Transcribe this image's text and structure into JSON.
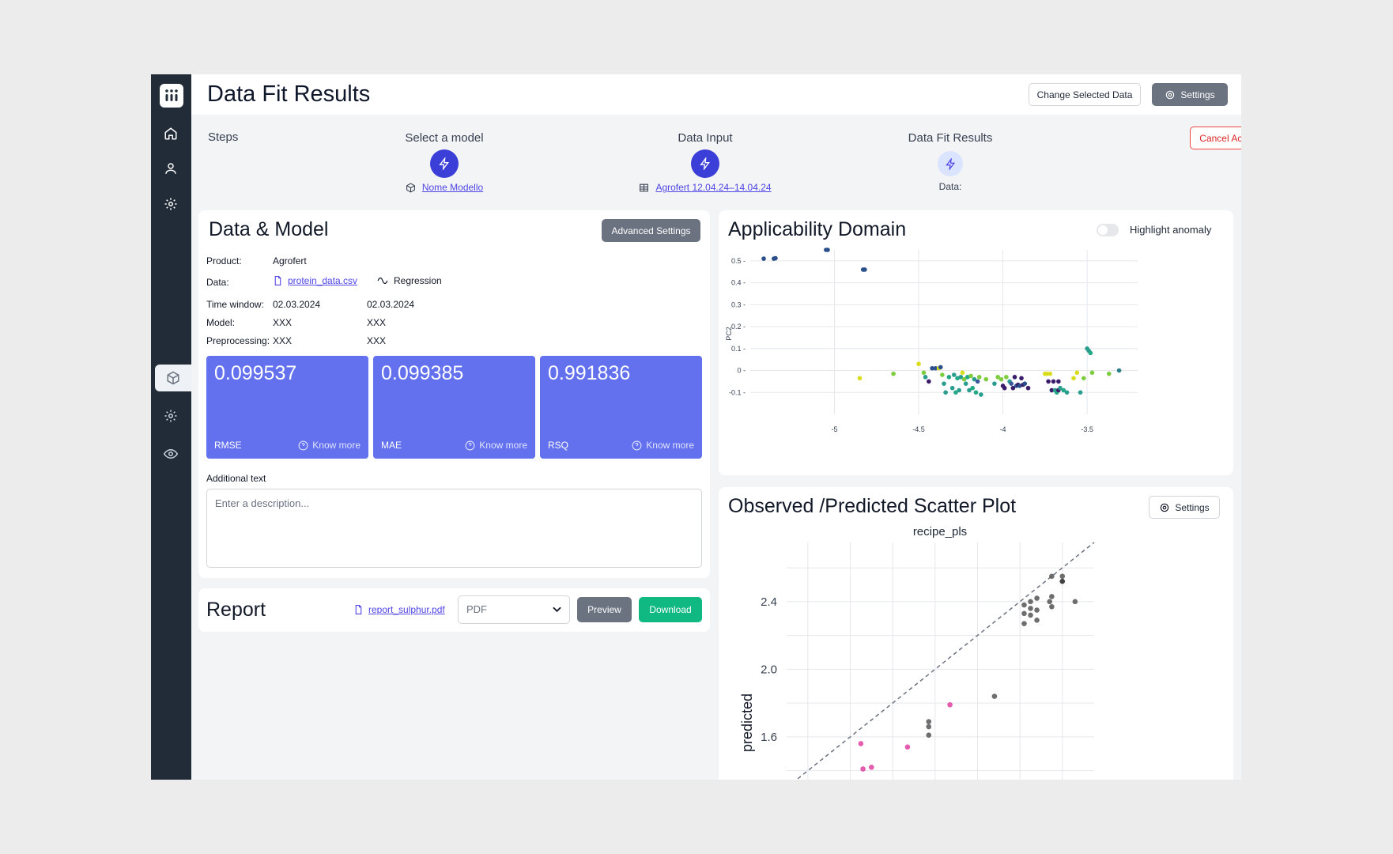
{
  "header": {
    "title": "Data Fit Results",
    "change_data_label": "Change Selected Data",
    "settings_label": "Settings"
  },
  "steps": {
    "label": "Steps",
    "cancel_label": "Cancel Action",
    "items": [
      {
        "title": "Select a model",
        "link": "Nome Modello",
        "icon": "cube-icon"
      },
      {
        "title": "Data Input",
        "link": "Agrofert 12.04.24–14.04.24",
        "icon": "table-icon"
      },
      {
        "title": "Data Fit Results",
        "link": "Data:",
        "icon": ""
      }
    ]
  },
  "data_model": {
    "title": "Data & Model",
    "advanced_settings_label": "Advanced Settings",
    "product_label": "Product:",
    "product_value": "Agrofert",
    "data_label": "Data:",
    "data_file": "protein_data.csv",
    "data_type": "Regression",
    "time_window_label": "Time window:",
    "time_window_from": "02.03.2024",
    "time_window_to": "02.03.2024",
    "model_label": "Model:",
    "model_value_1": "XXX",
    "model_value_2": "XXX",
    "preprocessing_label": "Preprocessing:",
    "preprocessing_value_1": "XXX",
    "preprocessing_value_2": "XXX",
    "metrics": [
      {
        "value": "0.099537",
        "label": "RMSE",
        "more": "Know more"
      },
      {
        "value": "0.099385",
        "label": "MAE",
        "more": "Know more"
      },
      {
        "value": "0.991836",
        "label": "RSQ",
        "more": "Know more"
      }
    ],
    "additional_text_label": "Additional text",
    "description_placeholder": "Enter a description..."
  },
  "report": {
    "title": "Report",
    "file": "report_sulphur.pdf",
    "format": "PDF",
    "preview_label": "Preview",
    "download_label": "Download"
  },
  "applicability": {
    "title": "Applicability Domain",
    "toggle_label": "Highlight anomaly"
  },
  "scatter": {
    "title": "Observed /Predicted Scatter Plot",
    "settings_label": "Settings"
  },
  "chart_data": [
    {
      "type": "scatter",
      "title": "",
      "xlabel": "",
      "ylabel": "PC2",
      "xlim": [
        -5.5,
        -3.2
      ],
      "ylim": [
        -0.2,
        0.55
      ],
      "x_ticks": [
        "-5",
        "-4.5",
        "-4",
        "-3.5"
      ],
      "y_ticks": [
        "0.5",
        "0.4",
        "0.3",
        "0.2",
        "0.1",
        "0",
        "-0.1"
      ],
      "grid": true,
      "points": [
        {
          "x": -5.42,
          "y": 0.51,
          "c": "#2b4f8a"
        },
        {
          "x": -5.36,
          "y": 0.51,
          "c": "#2b4f8a"
        },
        {
          "x": -5.35,
          "y": 0.512,
          "c": "#2b4f8a"
        },
        {
          "x": -5.05,
          "y": 0.55,
          "c": "#2b4f8a"
        },
        {
          "x": -5.04,
          "y": 0.55,
          "c": "#2b4f8a"
        },
        {
          "x": -4.83,
          "y": 0.46,
          "c": "#2b4f8a"
        },
        {
          "x": -4.82,
          "y": 0.46,
          "c": "#2b4f8a"
        },
        {
          "x": -4.85,
          "y": -0.035,
          "c": "#dadd1c"
        },
        {
          "x": -4.65,
          "y": -0.015,
          "c": "#7dcd3e"
        },
        {
          "x": -4.5,
          "y": 0.03,
          "c": "#dadd1c"
        },
        {
          "x": -4.47,
          "y": -0.01,
          "c": "#7dcd3e"
        },
        {
          "x": -4.46,
          "y": -0.03,
          "c": "#2a9d8f"
        },
        {
          "x": -4.44,
          "y": -0.05,
          "c": "#3b1c6b"
        },
        {
          "x": -4.42,
          "y": 0.01,
          "c": "#2b4f8a"
        },
        {
          "x": -4.4,
          "y": 0.01,
          "c": "#2b4f8a"
        },
        {
          "x": -4.38,
          "y": 0.01,
          "c": "#dadd1c"
        },
        {
          "x": -4.37,
          "y": 0.015,
          "c": "#2b4f8a"
        },
        {
          "x": -4.36,
          "y": -0.02,
          "c": "#7dcd3e"
        },
        {
          "x": -4.35,
          "y": -0.06,
          "c": "#2a9d8f"
        },
        {
          "x": -4.34,
          "y": -0.1,
          "c": "#2a9d8f"
        },
        {
          "x": -4.32,
          "y": -0.03,
          "c": "#22a884"
        },
        {
          "x": -4.3,
          "y": -0.08,
          "c": "#2a9d8f"
        },
        {
          "x": -4.29,
          "y": -0.02,
          "c": "#2a9d8f"
        },
        {
          "x": -4.28,
          "y": -0.1,
          "c": "#22a884"
        },
        {
          "x": -4.27,
          "y": -0.035,
          "c": "#22a884"
        },
        {
          "x": -4.26,
          "y": -0.09,
          "c": "#2a9d8f"
        },
        {
          "x": -4.25,
          "y": -0.03,
          "c": "#2a9d8f"
        },
        {
          "x": -4.24,
          "y": -0.01,
          "c": "#dadd1c"
        },
        {
          "x": -4.23,
          "y": -0.04,
          "c": "#7dcd3e"
        },
        {
          "x": -4.22,
          "y": -0.06,
          "c": "#2a9d8f"
        },
        {
          "x": -4.21,
          "y": -0.03,
          "c": "#22a884"
        },
        {
          "x": -4.2,
          "y": -0.09,
          "c": "#2a9d8f"
        },
        {
          "x": -4.19,
          "y": -0.025,
          "c": "#7dcd3e"
        },
        {
          "x": -4.18,
          "y": -0.08,
          "c": "#22a884"
        },
        {
          "x": -4.17,
          "y": -0.04,
          "c": "#2a9d8f"
        },
        {
          "x": -4.16,
          "y": -0.1,
          "c": "#22a884"
        },
        {
          "x": -4.15,
          "y": -0.05,
          "c": "#3b5998"
        },
        {
          "x": -4.14,
          "y": -0.03,
          "c": "#7dcd3e"
        },
        {
          "x": -4.13,
          "y": -0.11,
          "c": "#2a9d8f"
        },
        {
          "x": -4.1,
          "y": -0.04,
          "c": "#7dcd3e"
        },
        {
          "x": -4.05,
          "y": -0.06,
          "c": "#2a9d8f"
        },
        {
          "x": -4.03,
          "y": -0.03,
          "c": "#7dcd3e"
        },
        {
          "x": -4.01,
          "y": -0.04,
          "c": "#7dcd3e"
        },
        {
          "x": -4.0,
          "y": -0.07,
          "c": "#3b1c6b"
        },
        {
          "x": -3.99,
          "y": -0.08,
          "c": "#3b1c6b"
        },
        {
          "x": -3.98,
          "y": -0.03,
          "c": "#7dcd3e"
        },
        {
          "x": -3.96,
          "y": -0.05,
          "c": "#2a9d8f"
        },
        {
          "x": -3.95,
          "y": -0.06,
          "c": "#3b5998"
        },
        {
          "x": -3.94,
          "y": -0.08,
          "c": "#3b1c6b"
        },
        {
          "x": -3.93,
          "y": -0.03,
          "c": "#3b1c6b"
        },
        {
          "x": -3.92,
          "y": -0.07,
          "c": "#2b4f8a"
        },
        {
          "x": -3.91,
          "y": -0.065,
          "c": "#3b1c6b"
        },
        {
          "x": -3.9,
          "y": -0.07,
          "c": "#2b4f8a"
        },
        {
          "x": -3.89,
          "y": -0.035,
          "c": "#3b1c6b"
        },
        {
          "x": -3.88,
          "y": -0.065,
          "c": "#3b1c6b"
        },
        {
          "x": -3.87,
          "y": -0.06,
          "c": "#2b4f8a"
        },
        {
          "x": -3.85,
          "y": -0.08,
          "c": "#3b1c6b"
        },
        {
          "x": -3.75,
          "y": -0.015,
          "c": "#dadd1c"
        },
        {
          "x": -3.74,
          "y": -0.015,
          "c": "#dadd1c"
        },
        {
          "x": -3.73,
          "y": -0.05,
          "c": "#3b1c6b"
        },
        {
          "x": -3.72,
          "y": -0.015,
          "c": "#dadd1c"
        },
        {
          "x": -3.71,
          "y": -0.09,
          "c": "#3b1c6b"
        },
        {
          "x": -3.7,
          "y": -0.05,
          "c": "#3b1c6b"
        },
        {
          "x": -3.69,
          "y": -0.09,
          "c": "#2a9d8f"
        },
        {
          "x": -3.68,
          "y": -0.1,
          "c": "#22a884"
        },
        {
          "x": -3.67,
          "y": -0.05,
          "c": "#3b1c6b"
        },
        {
          "x": -3.67,
          "y": -0.09,
          "c": "#3b1c6b"
        },
        {
          "x": -3.66,
          "y": -0.08,
          "c": "#2a9d8f"
        },
        {
          "x": -3.64,
          "y": -0.09,
          "c": "#22a884"
        },
        {
          "x": -3.62,
          "y": -0.1,
          "c": "#2a9d8f"
        },
        {
          "x": -3.58,
          "y": -0.035,
          "c": "#dadd1c"
        },
        {
          "x": -3.56,
          "y": -0.01,
          "c": "#dadd1c"
        },
        {
          "x": -3.54,
          "y": -0.1,
          "c": "#2a9d8f"
        },
        {
          "x": -3.52,
          "y": -0.035,
          "c": "#7dcd3e"
        },
        {
          "x": -3.5,
          "y": 0.1,
          "c": "#2a9d8f"
        },
        {
          "x": -3.49,
          "y": 0.09,
          "c": "#2a9d8f"
        },
        {
          "x": -3.48,
          "y": 0.08,
          "c": "#22a884"
        },
        {
          "x": -3.47,
          "y": -0.01,
          "c": "#7dcd3e"
        },
        {
          "x": -3.37,
          "y": -0.015,
          "c": "#7dcd3e"
        },
        {
          "x": -3.31,
          "y": 0.0,
          "c": "#2a7f8a"
        }
      ]
    },
    {
      "type": "scatter",
      "title": "recipe_pls",
      "xlabel": "",
      "ylabel": "predicted",
      "ylim": [
        1.3,
        2.75
      ],
      "xlim": [
        1.3,
        2.75
      ],
      "y_ticks": [
        "2.4",
        "2.0",
        "1.6"
      ],
      "grid": true,
      "diagonal": true,
      "points": [
        {
          "x": 2.55,
          "y": 2.55,
          "c": "#555"
        },
        {
          "x": 2.6,
          "y": 2.55,
          "c": "#555"
        },
        {
          "x": 2.6,
          "y": 2.52,
          "c": "#222"
        },
        {
          "x": 2.55,
          "y": 2.43,
          "c": "#555"
        },
        {
          "x": 2.54,
          "y": 2.4,
          "c": "#555"
        },
        {
          "x": 2.66,
          "y": 2.4,
          "c": "#555"
        },
        {
          "x": 2.48,
          "y": 2.42,
          "c": "#555"
        },
        {
          "x": 2.45,
          "y": 2.4,
          "c": "#555"
        },
        {
          "x": 2.42,
          "y": 2.38,
          "c": "#555"
        },
        {
          "x": 2.45,
          "y": 2.36,
          "c": "#555"
        },
        {
          "x": 2.48,
          "y": 2.35,
          "c": "#555"
        },
        {
          "x": 2.42,
          "y": 2.33,
          "c": "#555"
        },
        {
          "x": 2.45,
          "y": 2.32,
          "c": "#555"
        },
        {
          "x": 2.48,
          "y": 2.29,
          "c": "#555"
        },
        {
          "x": 2.42,
          "y": 2.27,
          "c": "#555"
        },
        {
          "x": 2.55,
          "y": 2.37,
          "c": "#555"
        },
        {
          "x": 2.28,
          "y": 1.84,
          "c": "#555"
        },
        {
          "x": 1.97,
          "y": 1.69,
          "c": "#555"
        },
        {
          "x": 1.97,
          "y": 1.66,
          "c": "#555"
        },
        {
          "x": 1.97,
          "y": 1.61,
          "c": "#555"
        },
        {
          "x": 2.07,
          "y": 1.79,
          "c": "#e040a0"
        },
        {
          "x": 1.87,
          "y": 1.54,
          "c": "#e040a0"
        },
        {
          "x": 1.65,
          "y": 1.56,
          "c": "#e040a0"
        },
        {
          "x": 1.66,
          "y": 1.41,
          "c": "#e040a0"
        },
        {
          "x": 1.7,
          "y": 1.42,
          "c": "#e040a0"
        }
      ]
    }
  ]
}
